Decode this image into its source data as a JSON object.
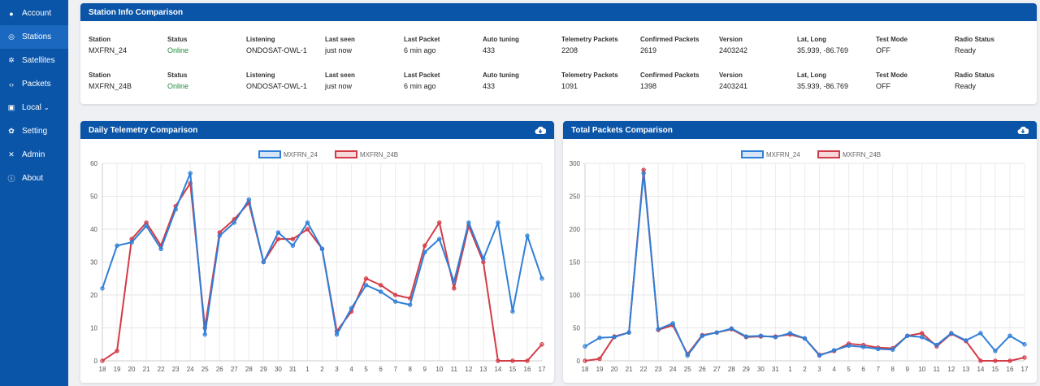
{
  "sidebar": {
    "items": [
      {
        "label": "Account",
        "icon": "user-circle-icon"
      },
      {
        "label": "Stations",
        "icon": "satellite-dish-icon",
        "active": true
      },
      {
        "label": "Satellites",
        "icon": "satellite-icon"
      },
      {
        "label": "Packets",
        "icon": "code-icon"
      },
      {
        "label": "Local",
        "icon": "car-icon",
        "dropdown": true
      },
      {
        "label": "Setting",
        "icon": "gears-icon"
      },
      {
        "label": "Admin",
        "icon": "tools-icon"
      },
      {
        "label": "About",
        "icon": "info-icon"
      }
    ]
  },
  "station_info": {
    "title": "Station Info Comparison",
    "labels": [
      "Station",
      "Status",
      "Listening",
      "Last seen",
      "Last Packet",
      "Auto tuning",
      "Telemetry Packets",
      "Confirmed Packets",
      "Version",
      "Lat, Long",
      "Test Mode",
      "Radio Status"
    ],
    "rows": [
      [
        "MXFRN_24",
        "Online",
        "ONDOSAT-OWL-1",
        "just now",
        "6 min ago",
        "433",
        "2208",
        "2619",
        "2403242",
        "35.939, -86.769",
        "OFF",
        "Ready"
      ],
      [
        "MXFRN_24B",
        "Online",
        "ONDOSAT-OWL-1",
        "just now",
        "6 min ago",
        "433",
        "1091",
        "1398",
        "2403241",
        "35.939, -86.769",
        "OFF",
        "Ready"
      ]
    ]
  },
  "colors": {
    "primary": "#0b55a8",
    "series_a": "#2f7fd8",
    "series_b": "#d33b47",
    "online": "#1f8a3c"
  },
  "chart_data": [
    {
      "type": "line",
      "title": "Daily Telemetry Comparison",
      "download_icon": "cloud-download-icon",
      "categories": [
        "18",
        "19",
        "20",
        "21",
        "22",
        "23",
        "24",
        "25",
        "26",
        "27",
        "28",
        "29",
        "30",
        "31",
        "1",
        "2",
        "3",
        "4",
        "5",
        "6",
        "7",
        "8",
        "9",
        "10",
        "11",
        "12",
        "13",
        "14",
        "15",
        "16",
        "17"
      ],
      "series": [
        {
          "name": "MXFRN_24",
          "values": [
            22,
            35,
            36,
            41,
            34,
            46,
            57,
            8,
            38,
            42,
            49,
            30,
            39,
            35,
            42,
            34,
            8,
            16,
            23,
            21,
            18,
            17,
            33,
            37,
            24,
            42,
            31,
            42,
            15,
            38,
            25
          ]
        },
        {
          "name": "MXFRN_24B",
          "values": [
            0,
            3,
            37,
            42,
            35,
            47,
            54,
            10,
            39,
            43,
            48,
            30,
            37,
            37,
            40,
            34,
            9,
            15,
            25,
            23,
            20,
            19,
            35,
            42,
            22,
            41,
            30,
            0,
            0,
            0,
            5
          ]
        }
      ],
      "ylim": [
        0,
        60
      ],
      "yticks": [
        0,
        10,
        20,
        30,
        40,
        50,
        60
      ],
      "grid": true,
      "legend": "top-center"
    },
    {
      "type": "line",
      "title": "Total Packets Comparison",
      "download_icon": "cloud-download-icon",
      "categories": [
        "18",
        "19",
        "20",
        "21",
        "22",
        "23",
        "24",
        "25",
        "26",
        "27",
        "28",
        "29",
        "30",
        "31",
        "1",
        "2",
        "3",
        "4",
        "5",
        "6",
        "7",
        "8",
        "9",
        "10",
        "11",
        "12",
        "13",
        "14",
        "15",
        "16",
        "17"
      ],
      "series": [
        {
          "name": "MXFRN_24",
          "values": [
            22,
            35,
            36,
            43,
            285,
            48,
            57,
            8,
            38,
            43,
            49,
            37,
            38,
            36,
            42,
            34,
            8,
            16,
            23,
            21,
            18,
            17,
            38,
            36,
            24,
            42,
            31,
            42,
            15,
            38,
            25
          ]
        },
        {
          "name": "MXFRN_24B",
          "values": [
            0,
            3,
            37,
            43,
            290,
            47,
            54,
            10,
            39,
            43,
            48,
            36,
            37,
            37,
            40,
            34,
            9,
            15,
            26,
            24,
            20,
            19,
            38,
            42,
            22,
            41,
            30,
            0,
            0,
            0,
            5
          ]
        }
      ],
      "ylim": [
        0,
        300
      ],
      "yticks": [
        0,
        50,
        100,
        150,
        200,
        250,
        300
      ],
      "grid": true,
      "legend": "top-center"
    }
  ]
}
